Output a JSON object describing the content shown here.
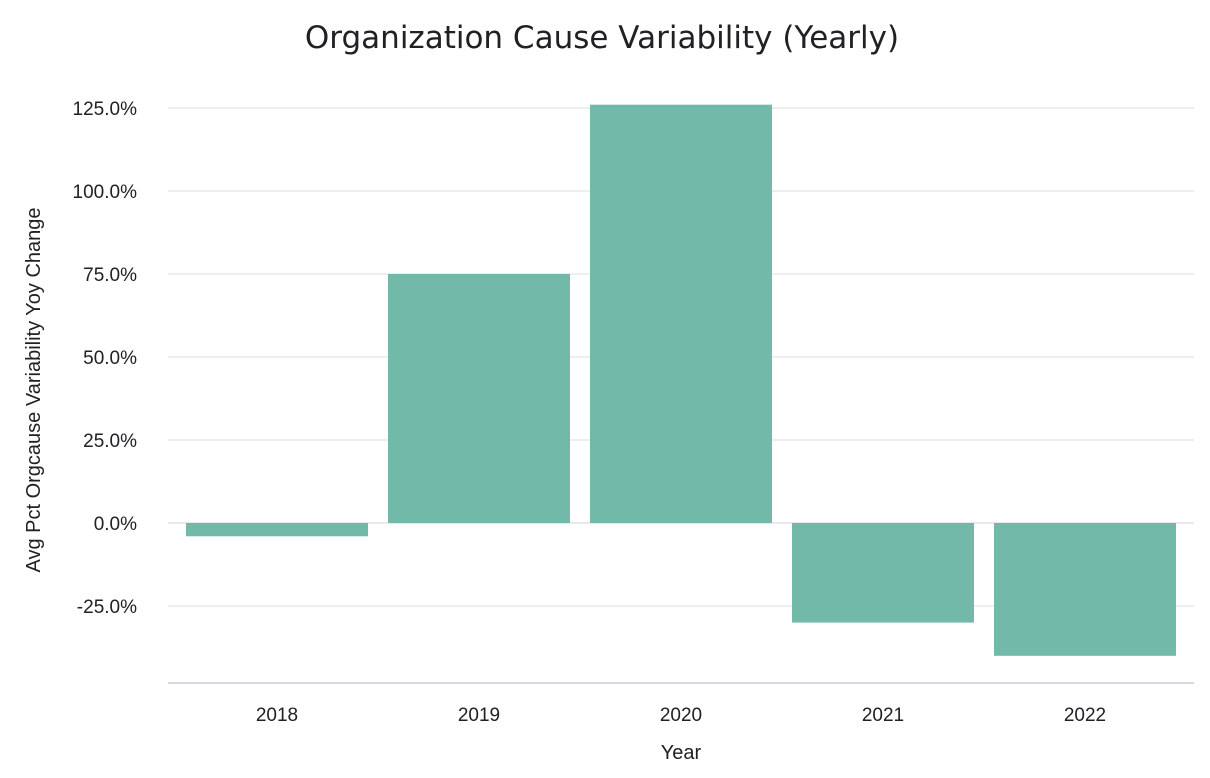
{
  "chart_data": {
    "type": "bar",
    "title": "Organization Cause Variability (Yearly)",
    "xlabel": "Year",
    "ylabel": "Avg Pct Orgcause Variability Yoy Change",
    "categories": [
      "2018",
      "2019",
      "2020",
      "2021",
      "2022"
    ],
    "values": [
      -4.0,
      75.0,
      126.0,
      -30.0,
      -40.0
    ],
    "ylim": [
      -47.0,
      137.0
    ],
    "yticks": [
      -25,
      0,
      25,
      50,
      75,
      100,
      125
    ],
    "ytick_labels": [
      "-25.0%",
      "0.0%",
      "25.0%",
      "50.0%",
      "75.0%",
      "100.0%",
      "125.0%"
    ],
    "grid": true,
    "legend": "none",
    "bar_color": "#72b9aa"
  }
}
